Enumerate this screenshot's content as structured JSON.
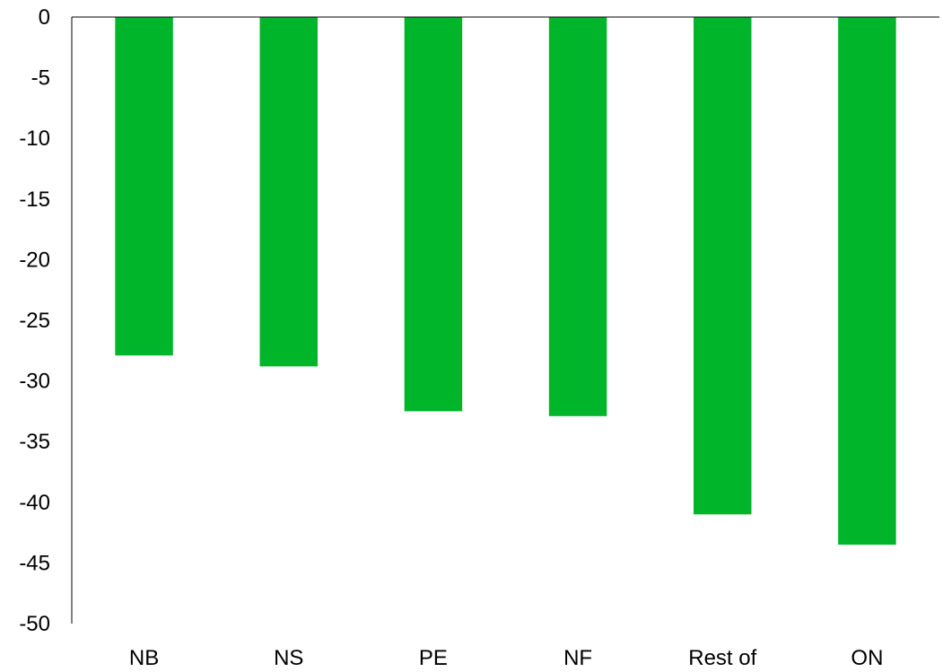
{
  "chart_data": {
    "type": "bar",
    "categories": [
      "NB",
      "NS",
      "PE",
      "NF",
      "Rest of",
      "ON"
    ],
    "values": [
      -27.9,
      -28.8,
      -32.5,
      -32.9,
      -41.0,
      -43.5
    ],
    "ylim": [
      -50,
      0
    ],
    "yticks": [
      0,
      -5,
      -10,
      -15,
      -20,
      -25,
      -30,
      -35,
      -40,
      -45,
      -50
    ],
    "ytick_labels": [
      "0",
      "-5",
      "-10",
      "-15",
      "-20",
      "-25",
      "-30",
      "-35",
      "-40",
      "-45",
      "-50"
    ],
    "title": "",
    "xlabel": "",
    "ylabel": "",
    "grid": false,
    "legend": false,
    "bar_color": "#00B52A"
  }
}
